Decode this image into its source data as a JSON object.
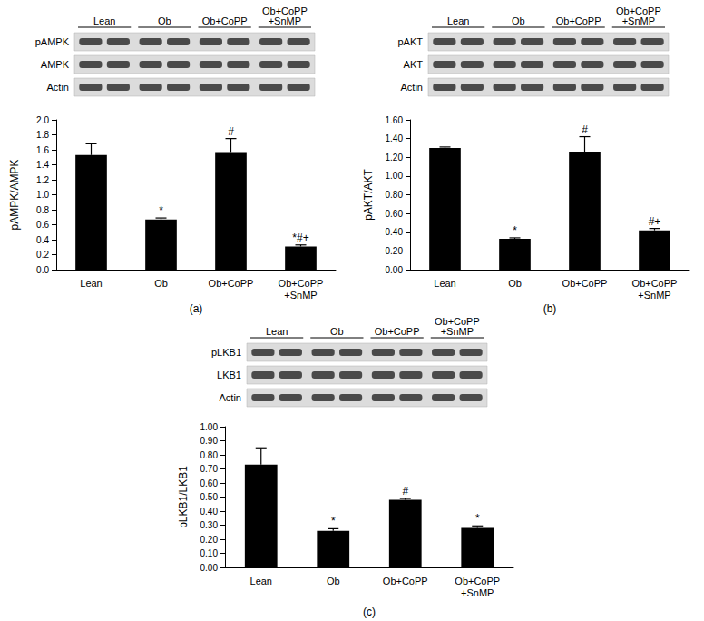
{
  "chart_data": [
    {
      "type": "bar",
      "caption": "(a)",
      "y_label": "pAMPK/AMPK",
      "categories": [
        "Lean",
        "Ob",
        "Ob+CoPP",
        "Ob+CoPP\n+SnMP"
      ],
      "values": [
        1.53,
        0.67,
        1.57,
        0.31
      ],
      "errors": [
        0.15,
        0.02,
        0.18,
        0.02
      ],
      "annotations": [
        null,
        "*",
        "#",
        "*#+"
      ],
      "color": "#000000",
      "ylim": [
        0,
        2.0
      ],
      "yticks": [
        {
          "value": 0,
          "label": "0.0"
        },
        0.2,
        0.4,
        0.6,
        0.8,
        {
          "value": 1.0,
          "label": "1.0"
        },
        1.2,
        1.4,
        1.6,
        1.8,
        {
          "value": 2.0,
          "label": "2.0"
        }
      ],
      "blot": {
        "lanes": [
          "Lean",
          "Ob",
          "Ob+CoPP",
          "Ob+CoPP\n+SnMP"
        ],
        "rows": [
          "pAMPK",
          "AMPK",
          "Actin"
        ]
      }
    },
    {
      "type": "bar",
      "caption": "(b)",
      "y_label": "pAKT/AKT",
      "categories": [
        "Lean",
        "Ob",
        "Ob+CoPP",
        "Ob+CoPP\n+SnMP"
      ],
      "values": [
        1.3,
        0.33,
        1.26,
        0.42
      ],
      "errors": [
        0.01,
        0.01,
        0.16,
        0.02
      ],
      "annotations": [
        null,
        "*",
        "#",
        "#+"
      ],
      "color": "#000000",
      "ylim": [
        0,
        1.6
      ],
      "yticks": [
        {
          "value": 0,
          "label": "0.00"
        },
        {
          "value": 0.2,
          "label": "0.20"
        },
        {
          "value": 0.4,
          "label": "0.40"
        },
        {
          "value": 0.6,
          "label": "0.60"
        },
        {
          "value": 0.8,
          "label": "0.80"
        },
        {
          "value": 1.0,
          "label": "1.00"
        },
        {
          "value": 1.2,
          "label": "1.20"
        },
        {
          "value": 1.4,
          "label": "1.40"
        },
        {
          "value": 1.6,
          "label": "1.60"
        }
      ],
      "blot": {
        "lanes": [
          "Lean",
          "Ob",
          "Ob+CoPP",
          "Ob+CoPP\n+SnMP"
        ],
        "rows": [
          "pAKT",
          "AKT",
          "Actin"
        ]
      }
    },
    {
      "type": "bar",
      "caption": "(c)",
      "y_label": "pLKB1/LKB1",
      "categories": [
        "Lean",
        "Ob",
        "Ob+CoPP",
        "Ob+CoPP\n+SnMP"
      ],
      "values": [
        0.73,
        0.26,
        0.48,
        0.28
      ],
      "errors": [
        0.12,
        0.015,
        0.01,
        0.015
      ],
      "annotations": [
        null,
        "*",
        "#",
        "*"
      ],
      "color": "#000000",
      "ylim": [
        0,
        1.0
      ],
      "yticks": [
        {
          "value": 0,
          "label": "0.00"
        },
        {
          "value": 0.1,
          "label": "0.10"
        },
        {
          "value": 0.2,
          "label": "0.20"
        },
        {
          "value": 0.3,
          "label": "0.30"
        },
        {
          "value": 0.4,
          "label": "0.40"
        },
        {
          "value": 0.5,
          "label": "0.50"
        },
        {
          "value": 0.6,
          "label": "0.60"
        },
        {
          "value": 0.7,
          "label": "0.70"
        },
        {
          "value": 0.8,
          "label": "0.80"
        },
        {
          "value": 0.9,
          "label": "0.90"
        },
        {
          "value": 1.0,
          "label": "1.00"
        }
      ],
      "blot": {
        "lanes": [
          "Lean",
          "Ob",
          "Ob+CoPP",
          "Ob+CoPP\n+SnMP"
        ],
        "rows": [
          "pLKB1",
          "LKB1",
          "Actin"
        ]
      }
    }
  ]
}
